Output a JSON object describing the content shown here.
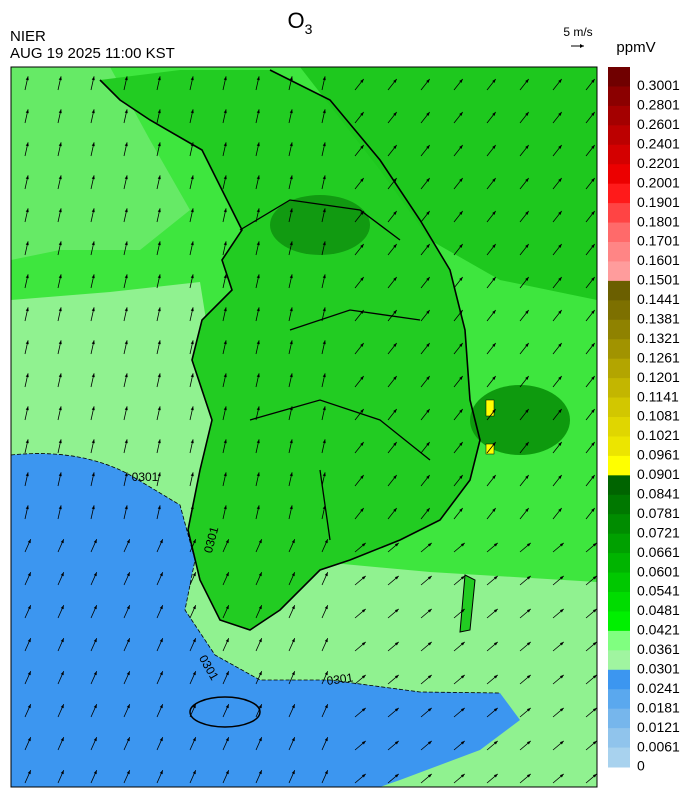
{
  "header": {
    "title": {
      "text": "O",
      "subscript": "3"
    },
    "source": "NIER",
    "timestamp": "AUG 19 2025 11:00 KST",
    "vector_scale": "5 m/s"
  },
  "legend": {
    "unit": "ppmV",
    "levels": [
      {
        "value": 0.3001,
        "color": "#700000"
      },
      {
        "value": 0.2801,
        "color": "#8b0000"
      },
      {
        "value": 0.2601,
        "color": "#a40000"
      },
      {
        "value": 0.2401,
        "color": "#bc0000"
      },
      {
        "value": 0.2201,
        "color": "#d40000"
      },
      {
        "value": 0.2001,
        "color": "#ec0000"
      },
      {
        "value": 0.1901,
        "color": "#ff1a1a"
      },
      {
        "value": 0.1801,
        "color": "#ff4444"
      },
      {
        "value": 0.1701,
        "color": "#ff6a6a"
      },
      {
        "value": 0.1601,
        "color": "#ff8585"
      },
      {
        "value": 0.1501,
        "color": "#ff9c9c"
      },
      {
        "value": 0.1441,
        "color": "#6b5f00"
      },
      {
        "value": 0.1381,
        "color": "#7d7000"
      },
      {
        "value": 0.1321,
        "color": "#8f8200"
      },
      {
        "value": 0.1261,
        "color": "#a19300"
      },
      {
        "value": 0.1201,
        "color": "#b3a500"
      },
      {
        "value": 0.1141,
        "color": "#c3b600"
      },
      {
        "value": 0.1081,
        "color": "#d2c700"
      },
      {
        "value": 0.1021,
        "color": "#e0d600"
      },
      {
        "value": 0.0961,
        "color": "#ece500"
      },
      {
        "value": 0.0901,
        "color": "#ffff00"
      },
      {
        "value": 0.0841,
        "color": "#006400"
      },
      {
        "value": 0.0781,
        "color": "#007800"
      },
      {
        "value": 0.0721,
        "color": "#008c00"
      },
      {
        "value": 0.0661,
        "color": "#00a000"
      },
      {
        "value": 0.0601,
        "color": "#00b400"
      },
      {
        "value": 0.0541,
        "color": "#00c800"
      },
      {
        "value": 0.0481,
        "color": "#00dc00"
      },
      {
        "value": 0.0421,
        "color": "#00f000"
      },
      {
        "value": 0.0361,
        "color": "#80ff80"
      },
      {
        "value": 0.0301,
        "color": "#a0f5a0"
      },
      {
        "value": 0.0241,
        "color": "#3c96f0"
      },
      {
        "value": 0.0181,
        "color": "#5aa8ee"
      },
      {
        "value": 0.0121,
        "color": "#76b6ec"
      },
      {
        "value": 0.0061,
        "color": "#90c4ec"
      },
      {
        "value": 0,
        "color": "#a8d2ee"
      }
    ]
  },
  "map": {
    "contour_labels": [
      "0301",
      "0301",
      "0301",
      "0301"
    ]
  }
}
